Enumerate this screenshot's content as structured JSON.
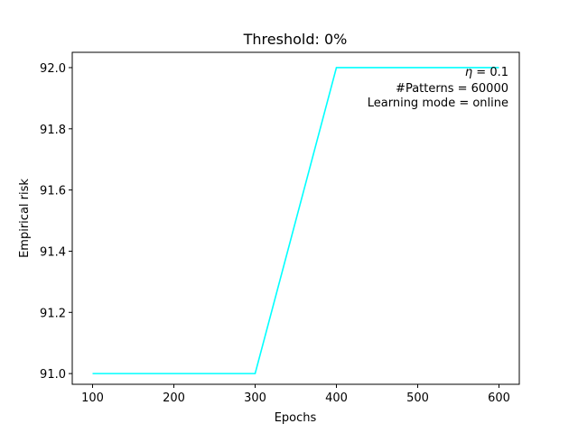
{
  "chart_data": {
    "type": "line",
    "title": "Threshold: 0%",
    "xlabel": "Epochs",
    "ylabel": "Empirical risk",
    "xlim": [
      75,
      625
    ],
    "ylim": [
      90.965,
      92.05
    ],
    "xticks": [
      100,
      200,
      300,
      400,
      500,
      600
    ],
    "xtick_labels": [
      "100",
      "200",
      "300",
      "400",
      "500",
      "600"
    ],
    "yticks": [
      91.0,
      91.2,
      91.4,
      91.6,
      91.8,
      92.0
    ],
    "ytick_labels": [
      "91.0",
      "91.2",
      "91.4",
      "91.6",
      "91.8",
      "92.0"
    ],
    "grid": false,
    "series": [
      {
        "color": "#00ffff",
        "x": [
          100,
          200,
          300,
          400,
          500,
          600
        ],
        "y": [
          91.0,
          91.0,
          91.0,
          92.0,
          92.0,
          92.0
        ]
      }
    ],
    "annotation": {
      "eta_symbol": "η",
      "eta_rest": " = 0.1",
      "patterns": "#Patterns = 60000",
      "mode": "Learning mode = online",
      "placement": "top-right"
    }
  }
}
